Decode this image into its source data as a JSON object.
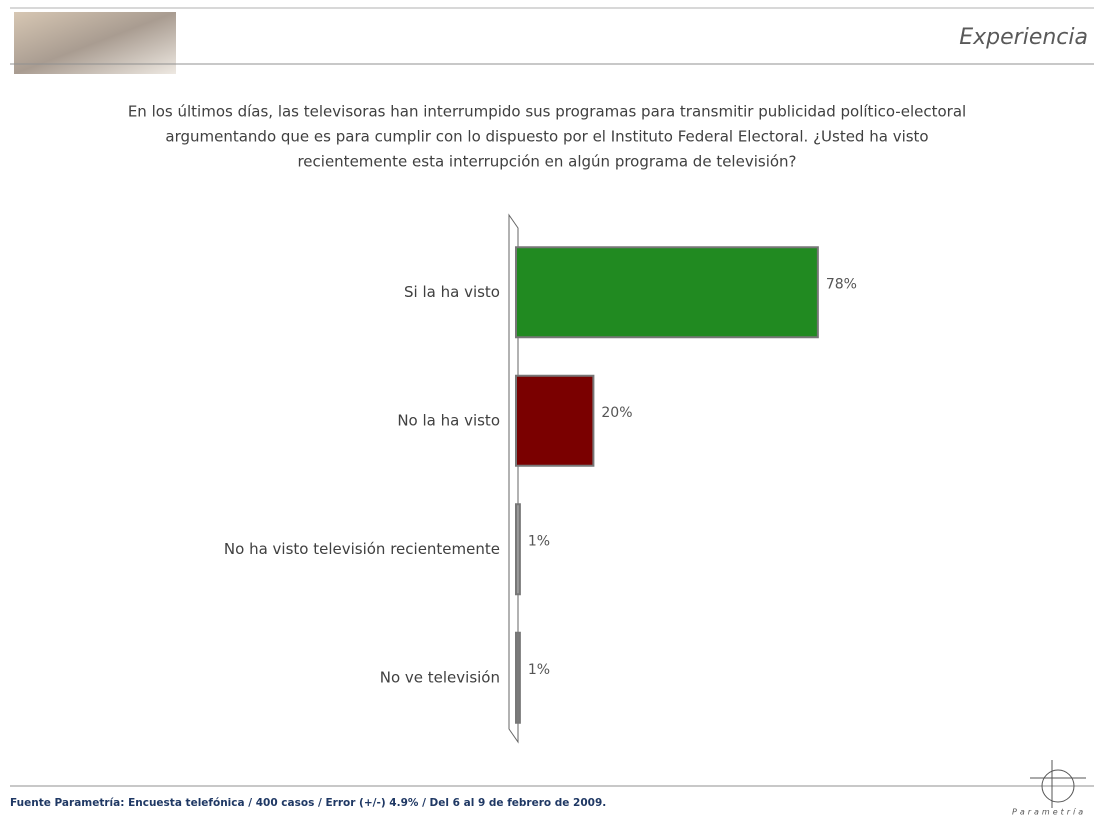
{
  "header": {
    "title": "Experiencia"
  },
  "chart_data": {
    "type": "bar",
    "title": [
      "En los últimos días, las televisoras han interrumpido sus programas para transmitir publicidad político-electoral",
      "argumentando que es para cumplir con lo dispuesto por el Instituto Federal Electoral. ¿Usted ha visto",
      "recientemente esta interrupción en algún programa de televisión?"
    ],
    "categories": [
      "Si la ha visto",
      "No la ha visto",
      "No ha visto televisión recientemente",
      "No ve televisión"
    ],
    "values": [
      78,
      20,
      1,
      1
    ],
    "value_labels": [
      "78%",
      "20%",
      "1%",
      "1%"
    ],
    "colors": [
      "#218a21",
      "#7a0000",
      "#9a9a9a",
      "#7a7a7a"
    ]
  },
  "footer": {
    "source": "Fuente Parametría: Encuesta telefónica / 400 casos / Error (+/-) 4.9% / Del 6 al 9 de febrero de 2009."
  },
  "brand": "Parametría"
}
